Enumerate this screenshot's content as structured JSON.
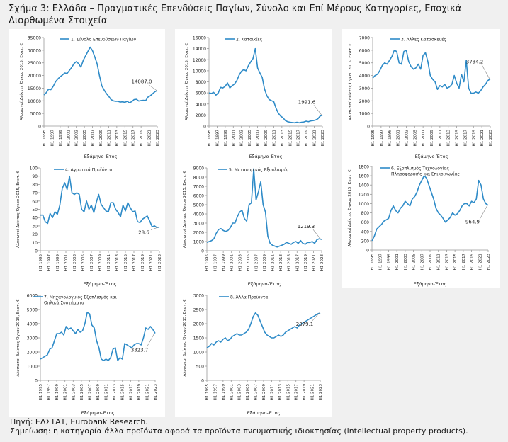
{
  "figure": {
    "title": "Σχήμα 3: Ελλάδα – Πραγματικές Επενδύσεις Παγίων, Σύνολο και Επί Μέρους Κατηγορίες, Εποχικά Διορθωμένα Στοιχεία",
    "source": "Πηγή: ΕΛΣΤΑΤ, Eurobank Research.",
    "note": "Σημείωση: η κατηγορία άλλα προϊόντα αφορά τα προϊόντα πνευματικής ιδιοκτησίας (intellectual property products)."
  },
  "colors": {
    "line": "#2e8bc8",
    "panel": "#ffffff",
    "background": "#f0f0f0",
    "axis": "#999999"
  },
  "chart_data": [
    {
      "type": "line",
      "legend": "1. Σύνολο Επενδύσεων Παγίων",
      "ylabel": "Αλυσωτοί Δείκτες Όγκου 2015, Εκατ. €",
      "xlabel": "Εξάμηνο-Έτος",
      "ylim": [
        0,
        35000
      ],
      "yticks": [
        0,
        5000,
        10000,
        15000,
        20000,
        25000,
        30000,
        35000
      ],
      "xticks": [
        "H1 1995",
        "H1 1997",
        "H1 1999",
        "H1 2001",
        "H1 2003",
        "H1 2005",
        "H1 2007",
        "H1 2009",
        "H1 2011",
        "H1 2013",
        "H1 2015",
        "H1 2017",
        "H1 2019",
        "H1 2021",
        "H1 2023"
      ],
      "last_label": "14087.0",
      "values": [
        12300,
        13200,
        14600,
        14400,
        15700,
        17500,
        18600,
        19500,
        20200,
        21000,
        20800,
        22000,
        23200,
        24700,
        25500,
        24700,
        23300,
        26000,
        27800,
        29500,
        31200,
        29800,
        27300,
        24600,
        20000,
        16000,
        14300,
        12900,
        11800,
        10500,
        10000,
        9800,
        9800,
        9500,
        9600,
        9400,
        9800,
        9200,
        9700,
        10500,
        10600,
        9900,
        10100,
        10200,
        10100,
        11500,
        12000,
        12800,
        13600,
        14087
      ]
    },
    {
      "type": "line",
      "legend": "2. Κατοικίες",
      "ylabel": "Αλυσωτοί Δείκτες Όγκου 2015, Εκατ. €",
      "xlabel": "Εξάμηνο-Έτος",
      "ylim": [
        0,
        16000
      ],
      "yticks": [
        0,
        2000,
        4000,
        6000,
        8000,
        10000,
        12000,
        14000,
        16000
      ],
      "xticks": [
        "H1 1995",
        "H1 1997",
        "H1 1999",
        "H1 2001",
        "H1 2003",
        "H1 2005",
        "H1 2007",
        "H1 2009",
        "H1 2011",
        "H1 2013",
        "H1 2015",
        "H1 2017",
        "H1 2019",
        "H1 2021",
        "H1 2023"
      ],
      "last_label": "1991.6",
      "values": [
        6000,
        5900,
        6100,
        5600,
        6000,
        7000,
        6900,
        7200,
        7800,
        6900,
        7300,
        7600,
        8200,
        9200,
        9900,
        10200,
        10000,
        10900,
        11600,
        12200,
        14000,
        10500,
        9600,
        8800,
        6700,
        5500,
        4800,
        4600,
        4400,
        3200,
        2300,
        1800,
        1500,
        1000,
        800,
        700,
        650,
        600,
        700,
        600,
        700,
        750,
        900,
        800,
        950,
        1000,
        1100,
        1300,
        1800,
        1991.6
      ]
    },
    {
      "type": "line",
      "legend": "3. Άλλες Κατασκευές",
      "ylabel": "Αλυσωτοί Δείκτες Όγκου 2015, Εκατ. €",
      "xlabel": "Εξάμηνο-Έτος",
      "ylim": [
        0,
        7000
      ],
      "yticks": [
        0,
        1000,
        2000,
        3000,
        4000,
        5000,
        6000,
        7000
      ],
      "xticks": [
        "H1 1995",
        "H1 1997",
        "H1 1999",
        "H1 2001",
        "H1 2003",
        "H1 2005",
        "H1 2007",
        "H1 2009",
        "H1 2011",
        "H1 2013",
        "H1 2015",
        "H1 2017",
        "H1 2019",
        "H1 2021",
        "H1 2023"
      ],
      "last_label": "3734.2",
      "values": [
        3800,
        4000,
        4100,
        4400,
        4800,
        5000,
        4900,
        5200,
        5500,
        6000,
        5900,
        5000,
        4900,
        5900,
        6000,
        5100,
        4700,
        4500,
        4600,
        4900,
        4500,
        5600,
        5800,
        5100,
        4000,
        3700,
        3500,
        2900,
        3200,
        3100,
        3300,
        3000,
        3100,
        3300,
        4000,
        3400,
        3000,
        4100,
        3500,
        5200,
        3000,
        2600,
        2600,
        2700,
        2600,
        2800,
        3100,
        3300,
        3600,
        3734.2
      ]
    },
    {
      "type": "line",
      "legend": "4. Αγροτικά Προϊόντα",
      "ylabel": "Αλυσωτοί Δείκτες Όγκου 2015, Εκατ. €",
      "xlabel": "Εξάμηνο-Έτος",
      "ylim": [
        0,
        100
      ],
      "yticks": [
        0,
        10,
        20,
        30,
        40,
        50,
        60,
        70,
        80,
        90,
        100
      ],
      "xticks": [
        "H1 1995",
        "H1 1997",
        "H1 1999",
        "H1 2001",
        "H1 2003",
        "H1 2005",
        "H1 2007",
        "H1 2009",
        "H1 2011",
        "H1 2013",
        "H1 2015",
        "H1 2017",
        "H1 2019",
        "H1 2021",
        "H1 2023"
      ],
      "last_label": "28.6",
      "values": [
        43,
        43,
        35,
        33,
        45,
        40,
        47,
        44,
        55,
        75,
        82,
        74,
        90,
        70,
        68,
        70,
        68,
        50,
        47,
        60,
        50,
        55,
        46,
        58,
        68,
        56,
        52,
        48,
        47,
        58,
        58,
        50,
        46,
        41,
        55,
        48,
        58,
        52,
        47,
        48,
        35,
        34,
        38,
        40,
        42,
        36,
        29,
        30,
        28,
        28.6
      ]
    },
    {
      "type": "line",
      "legend": "5. Μεταφορικός Εξοπλισμός",
      "ylabel": "Αλυσωτοί Δείκτες Όγκου 2015, Εκατ. €",
      "xlabel": "Εξάμηνο-Έτος",
      "ylim": [
        0,
        9000
      ],
      "yticks": [
        0,
        1000,
        2000,
        3000,
        4000,
        5000,
        6000,
        7000,
        8000,
        9000
      ],
      "xticks": [
        "H1 1995",
        "H1 1997",
        "H1 1999",
        "H1 2001",
        "H1 2003",
        "H1 2005",
        "H1 2007",
        "H1 2009",
        "H1 2011",
        "H1 2013",
        "H1 2015",
        "H1 2017",
        "H1 2019",
        "H1 2021",
        "H1 2023"
      ],
      "last_label": "1219.3",
      "values": [
        900,
        1000,
        1100,
        1300,
        1900,
        2300,
        2400,
        2200,
        2100,
        2200,
        2500,
        3000,
        3000,
        3700,
        4200,
        4400,
        3500,
        3200,
        5000,
        5200,
        8900,
        5500,
        6400,
        7500,
        5000,
        4200,
        1600,
        800,
        600,
        500,
        400,
        500,
        600,
        700,
        900,
        800,
        700,
        900,
        1000,
        800,
        1100,
        800,
        700,
        900,
        900,
        1000,
        800,
        1200,
        1300,
        1219.3
      ]
    },
    {
      "type": "line",
      "legend": "6. Εξοπλισμός Τεχνολογίας Πληροφορικής και Επικοινωνίας",
      "ylabel": "Αλυσωτοί Δείκτες Όγκου 2015, Εκατ. €",
      "xlabel": "Εξάμηνο-Έτος",
      "ylim": [
        0,
        1800
      ],
      "yticks": [
        0,
        200,
        400,
        600,
        800,
        1000,
        1200,
        1400,
        1600,
        1800
      ],
      "xticks": [
        "H1 1995",
        "H1 1997",
        "H1 1999",
        "H1 2001",
        "H1 2003",
        "H1 2005",
        "H1 2007",
        "H1 2009",
        "H1 2011",
        "H1 2013",
        "H1 2015",
        "H1 2017",
        "H1 2019",
        "H1 2021",
        "H1 2023"
      ],
      "last_label": "964.9",
      "values": [
        200,
        300,
        450,
        500,
        550,
        620,
        650,
        680,
        850,
        950,
        850,
        800,
        900,
        950,
        1050,
        1000,
        950,
        1100,
        1150,
        1250,
        1400,
        1500,
        1600,
        1550,
        1400,
        1250,
        1100,
        900,
        800,
        750,
        680,
        600,
        650,
        700,
        800,
        750,
        780,
        850,
        950,
        1000,
        1000,
        950,
        1050,
        1020,
        1100,
        1500,
        1400,
        1100,
        1000,
        964.9
      ]
    },
    {
      "type": "line",
      "legend": "7. Μηχανολογικός Εξοπλισμός και Οπλικά Συστήματα",
      "ylabel": "Αλυσωτοί Δείκτες Όγκου 2015, Εκατ. €",
      "xlabel": "Εξάμηνο-Έτος",
      "ylim": [
        0,
        6000
      ],
      "yticks": [
        0,
        1000,
        2000,
        3000,
        4000,
        5000,
        6000
      ],
      "xticks": [
        "H1 1995",
        "H1 1997",
        "H1 1999",
        "H1 2001",
        "H1 2003",
        "H1 2005",
        "H1 2007",
        "H1 2009",
        "H1 2011",
        "H1 2013",
        "H1 2015",
        "H1 2017",
        "H1 2019",
        "H1 2021",
        "H1 2023"
      ],
      "last_label": "3323.7",
      "values": [
        1500,
        1600,
        1700,
        1800,
        2200,
        2300,
        2800,
        3300,
        3300,
        3400,
        3200,
        3800,
        3600,
        3700,
        3500,
        3300,
        3600,
        3400,
        3500,
        4000,
        4800,
        4700,
        3900,
        3700,
        2800,
        2300,
        1500,
        1400,
        1500,
        1400,
        1600,
        2200,
        2300,
        1400,
        1600,
        1500,
        2600,
        2500,
        2400,
        2300,
        2500,
        2600,
        2600,
        2500,
        3000,
        3700,
        3600,
        3800,
        3600,
        3323.7
      ]
    },
    {
      "type": "line",
      "legend": "8. Άλλα Προϊόντα",
      "ylabel": "Αλυσωτοί Δείκτες Όγκου 2015, Εκατ. €",
      "xlabel": "Εξάμηνο-Έτος",
      "ylim": [
        0,
        3000
      ],
      "yticks": [
        0,
        500,
        1000,
        1500,
        2000,
        2500,
        3000
      ],
      "xticks": [
        "H1 1995",
        "H1 1997",
        "H1 1999",
        "H1 2001",
        "H1 2003",
        "H1 2005",
        "H1 2007",
        "H1 2009",
        "H1 2011",
        "H1 2013",
        "H1 2015",
        "H1 2017",
        "H1 2019",
        "H1 2021",
        "H1 2023"
      ],
      "last_label": "2379.1",
      "values": [
        1150,
        1200,
        1300,
        1250,
        1350,
        1400,
        1350,
        1450,
        1500,
        1400,
        1450,
        1550,
        1600,
        1650,
        1600,
        1600,
        1650,
        1700,
        1800,
        2000,
        2250,
        2380,
        2300,
        2100,
        1900,
        1700,
        1600,
        1550,
        1500,
        1500,
        1550,
        1600,
        1550,
        1600,
        1700,
        1750,
        1800,
        1850,
        1900,
        1850,
        1950,
        2000,
        2050,
        2100,
        2150,
        2200,
        2250,
        2300,
        2350,
        2379.1
      ]
    }
  ]
}
